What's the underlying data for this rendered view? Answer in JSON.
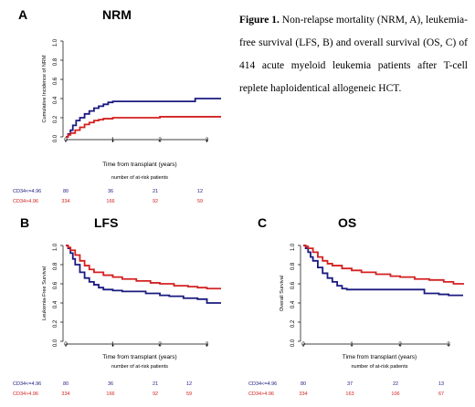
{
  "caption": {
    "label": "Figure 1.",
    "text": " Non-relapse mortality (NRM, A), leukemia-free survival (LFS, B) and overall survival (OS, C) of 414 acute myeloid leukemia patients after T-cell replete haploidentical allogeneic HCT."
  },
  "colors": {
    "low": "#1a1a80",
    "high": "#d42020"
  },
  "chart_data": [
    {
      "panel": "A",
      "title": "NRM",
      "type": "line",
      "xlabel": "Time from transplant (years)",
      "ylabel": "Cumulative Incidence of NRM",
      "xlim": [
        0,
        3.3
      ],
      "ylim": [
        0,
        1.0
      ],
      "xticks": [
        "0",
        "1",
        "2",
        "3"
      ],
      "yticks": [
        "0.0",
        "0.2",
        "0.4",
        "0.6",
        "0.8",
        "1.0"
      ],
      "risk_header": "number of at-risk patients",
      "series": [
        {
          "name": "CD34<=4.96",
          "color": "#1a1a80",
          "x": [
            0,
            0.05,
            0.1,
            0.15,
            0.22,
            0.3,
            0.4,
            0.5,
            0.6,
            0.7,
            0.8,
            0.9,
            1.0,
            1.2,
            2.0,
            2.7,
            2.75,
            3.3
          ],
          "y": [
            0,
            0.03,
            0.07,
            0.12,
            0.17,
            0.2,
            0.24,
            0.27,
            0.3,
            0.32,
            0.34,
            0.36,
            0.37,
            0.37,
            0.37,
            0.37,
            0.4,
            0.4
          ],
          "risk": [
            "80",
            "36",
            "21",
            "12"
          ]
        },
        {
          "name": "CD34>4.96",
          "color": "#d42020",
          "x": [
            0,
            0.05,
            0.1,
            0.2,
            0.3,
            0.4,
            0.5,
            0.6,
            0.7,
            0.8,
            1.0,
            1.5,
            2.0,
            2.5,
            3.3
          ],
          "y": [
            0,
            0.02,
            0.04,
            0.07,
            0.1,
            0.13,
            0.15,
            0.17,
            0.18,
            0.19,
            0.2,
            0.2,
            0.21,
            0.21,
            0.21
          ],
          "risk": [
            "334",
            "166",
            "92",
            "59"
          ]
        }
      ]
    },
    {
      "panel": "B",
      "title": "LFS",
      "type": "line",
      "xlabel": "Time from transplant (years)",
      "ylabel": "Leukemia-Free Survival",
      "xlim": [
        0,
        3.3
      ],
      "ylim": [
        0,
        1.0
      ],
      "xticks": [
        "0",
        "1",
        "2",
        "3"
      ],
      "yticks": [
        "0.0",
        "0.2",
        "0.4",
        "0.6",
        "0.8",
        "1.0"
      ],
      "risk_header": "number of at-risk patients",
      "series": [
        {
          "name": "CD34<=4.96",
          "color": "#1a1a80",
          "x": [
            0,
            0.05,
            0.1,
            0.15,
            0.2,
            0.3,
            0.4,
            0.5,
            0.6,
            0.7,
            0.8,
            1.0,
            1.2,
            1.5,
            1.7,
            2.0,
            2.2,
            2.5,
            2.8,
            3.0,
            3.3
          ],
          "y": [
            1.0,
            0.97,
            0.92,
            0.86,
            0.8,
            0.72,
            0.66,
            0.62,
            0.59,
            0.56,
            0.54,
            0.53,
            0.52,
            0.52,
            0.5,
            0.48,
            0.47,
            0.45,
            0.44,
            0.4,
            0.4
          ],
          "risk": [
            "80",
            "36",
            "21",
            "12"
          ]
        },
        {
          "name": "CD34>4.96",
          "color": "#d42020",
          "x": [
            0,
            0.05,
            0.1,
            0.2,
            0.3,
            0.4,
            0.5,
            0.6,
            0.8,
            1.0,
            1.2,
            1.5,
            1.8,
            2.0,
            2.3,
            2.6,
            2.8,
            3.0,
            3.3
          ],
          "y": [
            1.0,
            0.98,
            0.95,
            0.9,
            0.84,
            0.79,
            0.75,
            0.72,
            0.69,
            0.67,
            0.65,
            0.63,
            0.61,
            0.6,
            0.58,
            0.57,
            0.56,
            0.55,
            0.55
          ],
          "risk": [
            "334",
            "166",
            "92",
            "59"
          ]
        }
      ]
    },
    {
      "panel": "C",
      "title": "OS",
      "type": "line",
      "xlabel": "Time from transplant (years)",
      "ylabel": "Overall Survival",
      "xlim": [
        0,
        3.3
      ],
      "ylim": [
        0,
        1.0
      ],
      "xticks": [
        "0",
        "1",
        "2",
        "3"
      ],
      "yticks": [
        "0.0",
        "0.2",
        "0.4",
        "0.6",
        "0.8",
        "1.0"
      ],
      "risk_header": "number of at-risk patients",
      "series": [
        {
          "name": "CD34<=4.96",
          "color": "#1a1a80",
          "x": [
            0,
            0.05,
            0.1,
            0.15,
            0.2,
            0.3,
            0.4,
            0.5,
            0.6,
            0.7,
            0.8,
            0.9,
            1.2,
            1.5,
            2.0,
            2.5,
            2.8,
            3.0,
            3.3
          ],
          "y": [
            1.0,
            0.97,
            0.93,
            0.88,
            0.84,
            0.77,
            0.71,
            0.66,
            0.62,
            0.58,
            0.55,
            0.54,
            0.54,
            0.54,
            0.54,
            0.5,
            0.49,
            0.48,
            0.48
          ],
          "risk": [
            "80",
            "37",
            "22",
            "13"
          ]
        },
        {
          "name": "CD34>4.96",
          "color": "#d42020",
          "x": [
            0,
            0.05,
            0.1,
            0.2,
            0.3,
            0.4,
            0.5,
            0.6,
            0.8,
            1.0,
            1.2,
            1.5,
            1.8,
            2.0,
            2.3,
            2.6,
            2.9,
            3.1,
            3.3
          ],
          "y": [
            1.0,
            0.99,
            0.97,
            0.93,
            0.88,
            0.84,
            0.81,
            0.79,
            0.76,
            0.74,
            0.72,
            0.7,
            0.68,
            0.67,
            0.65,
            0.64,
            0.62,
            0.6,
            0.59
          ],
          "risk": [
            "334",
            "163",
            "106",
            "67"
          ]
        }
      ]
    }
  ]
}
